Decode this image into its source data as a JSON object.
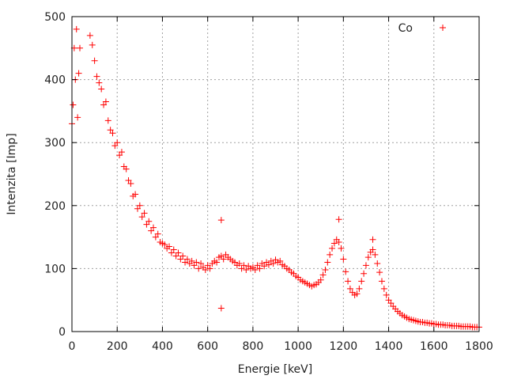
{
  "chart_data": {
    "type": "scatter",
    "title": "",
    "xlabel": "Energie [keV]",
    "ylabel": "Intenzita [Imp]",
    "xlim": [
      0,
      1800
    ],
    "ylim": [
      0,
      500
    ],
    "xticks": [
      0,
      200,
      400,
      600,
      800,
      1000,
      1200,
      1400,
      1600,
      1800
    ],
    "yticks": [
      0,
      100,
      200,
      300,
      400,
      500
    ],
    "grid": true,
    "legend": "top-right",
    "series": [
      {
        "name": "Co",
        "marker": "plus",
        "color": "#ff0000",
        "points": [
          [
            0,
            330
          ],
          [
            5,
            360
          ],
          [
            10,
            450
          ],
          [
            15,
            400
          ],
          [
            20,
            480
          ],
          [
            25,
            340
          ],
          [
            30,
            410
          ],
          [
            35,
            450
          ],
          [
            80,
            470
          ],
          [
            90,
            455
          ],
          [
            100,
            430
          ],
          [
            110,
            405
          ],
          [
            120,
            395
          ],
          [
            130,
            385
          ],
          [
            140,
            360
          ],
          [
            150,
            365
          ],
          [
            160,
            335
          ],
          [
            170,
            320
          ],
          [
            180,
            315
          ],
          [
            190,
            295
          ],
          [
            200,
            300
          ],
          [
            210,
            280
          ],
          [
            220,
            285
          ],
          [
            230,
            262
          ],
          [
            240,
            258
          ],
          [
            250,
            240
          ],
          [
            260,
            235
          ],
          [
            270,
            215
          ],
          [
            280,
            218
          ],
          [
            290,
            195
          ],
          [
            300,
            200
          ],
          [
            310,
            182
          ],
          [
            320,
            188
          ],
          [
            330,
            170
          ],
          [
            340,
            175
          ],
          [
            350,
            160
          ],
          [
            360,
            165
          ],
          [
            370,
            150
          ],
          [
            380,
            155
          ],
          [
            390,
            142
          ],
          [
            400,
            140
          ],
          [
            410,
            138
          ],
          [
            420,
            132
          ],
          [
            430,
            135
          ],
          [
            440,
            125
          ],
          [
            450,
            130
          ],
          [
            460,
            120
          ],
          [
            470,
            125
          ],
          [
            480,
            115
          ],
          [
            490,
            120
          ],
          [
            500,
            110
          ],
          [
            510,
            115
          ],
          [
            520,
            108
          ],
          [
            530,
            112
          ],
          [
            540,
            105
          ],
          [
            550,
            110
          ],
          [
            560,
            100
          ],
          [
            570,
            108
          ],
          [
            580,
            102
          ],
          [
            590,
            98
          ],
          [
            600,
            105
          ],
          [
            610,
            100
          ],
          [
            620,
            108
          ],
          [
            630,
            112
          ],
          [
            640,
            110
          ],
          [
            650,
            118
          ],
          [
            660,
            120
          ],
          [
            660,
            177
          ],
          [
            660,
            37
          ],
          [
            670,
            115
          ],
          [
            680,
            122
          ],
          [
            690,
            118
          ],
          [
            700,
            115
          ],
          [
            710,
            112
          ],
          [
            720,
            110
          ],
          [
            730,
            105
          ],
          [
            740,
            108
          ],
          [
            750,
            100
          ],
          [
            760,
            105
          ],
          [
            770,
            98
          ],
          [
            780,
            104
          ],
          [
            790,
            100
          ],
          [
            800,
            102
          ],
          [
            810,
            98
          ],
          [
            820,
            105
          ],
          [
            830,
            100
          ],
          [
            840,
            108
          ],
          [
            850,
            104
          ],
          [
            860,
            110
          ],
          [
            870,
            106
          ],
          [
            880,
            112
          ],
          [
            890,
            108
          ],
          [
            900,
            114
          ],
          [
            910,
            110
          ],
          [
            920,
            112
          ],
          [
            930,
            106
          ],
          [
            940,
            104
          ],
          [
            950,
            100
          ],
          [
            960,
            98
          ],
          [
            970,
            94
          ],
          [
            980,
            92
          ],
          [
            990,
            88
          ],
          [
            1000,
            86
          ],
          [
            1010,
            82
          ],
          [
            1020,
            80
          ],
          [
            1030,
            78
          ],
          [
            1040,
            76
          ],
          [
            1050,
            74
          ],
          [
            1060,
            72
          ],
          [
            1070,
            74
          ],
          [
            1080,
            75
          ],
          [
            1090,
            78
          ],
          [
            1100,
            82
          ],
          [
            1110,
            90
          ],
          [
            1120,
            98
          ],
          [
            1130,
            110
          ],
          [
            1140,
            122
          ],
          [
            1150,
            132
          ],
          [
            1160,
            140
          ],
          [
            1170,
            146
          ],
          [
            1180,
            142
          ],
          [
            1180,
            178
          ],
          [
            1190,
            132
          ],
          [
            1200,
            115
          ],
          [
            1210,
            95
          ],
          [
            1220,
            80
          ],
          [
            1230,
            68
          ],
          [
            1240,
            62
          ],
          [
            1250,
            58
          ],
          [
            1260,
            60
          ],
          [
            1270,
            68
          ],
          [
            1280,
            80
          ],
          [
            1290,
            92
          ],
          [
            1300,
            105
          ],
          [
            1310,
            118
          ],
          [
            1320,
            126
          ],
          [
            1330,
            130
          ],
          [
            1330,
            146
          ],
          [
            1340,
            122
          ],
          [
            1350,
            108
          ],
          [
            1360,
            94
          ],
          [
            1370,
            80
          ],
          [
            1380,
            68
          ],
          [
            1390,
            58
          ],
          [
            1400,
            50
          ],
          [
            1410,
            45
          ],
          [
            1420,
            40
          ],
          [
            1430,
            36
          ],
          [
            1440,
            32
          ],
          [
            1450,
            29
          ],
          [
            1460,
            26
          ],
          [
            1470,
            24
          ],
          [
            1480,
            22
          ],
          [
            1490,
            20
          ],
          [
            1500,
            19
          ],
          [
            1510,
            18
          ],
          [
            1520,
            17
          ],
          [
            1530,
            16
          ],
          [
            1540,
            15
          ],
          [
            1550,
            15
          ],
          [
            1560,
            14
          ],
          [
            1570,
            14
          ],
          [
            1580,
            13
          ],
          [
            1590,
            13
          ],
          [
            1600,
            12
          ],
          [
            1610,
            12
          ],
          [
            1620,
            11
          ],
          [
            1630,
            11
          ],
          [
            1640,
            11
          ],
          [
            1650,
            10
          ],
          [
            1660,
            10
          ],
          [
            1670,
            10
          ],
          [
            1680,
            9
          ],
          [
            1690,
            9
          ],
          [
            1700,
            9
          ],
          [
            1710,
            9
          ],
          [
            1720,
            8
          ],
          [
            1730,
            8
          ],
          [
            1740,
            8
          ],
          [
            1750,
            8
          ],
          [
            1760,
            8
          ],
          [
            1770,
            7
          ],
          [
            1780,
            7
          ],
          [
            1790,
            7
          ],
          [
            1800,
            7
          ]
        ]
      }
    ]
  }
}
